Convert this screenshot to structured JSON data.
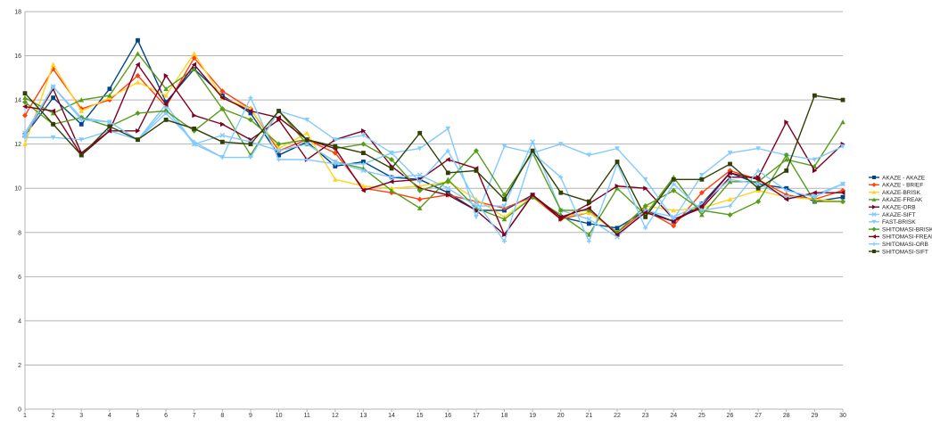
{
  "chart_data": {
    "type": "line",
    "title": "",
    "xlabel": "",
    "ylabel": "",
    "x": [
      1,
      2,
      3,
      4,
      5,
      6,
      7,
      8,
      9,
      10,
      11,
      12,
      13,
      14,
      15,
      16,
      17,
      18,
      19,
      20,
      21,
      22,
      23,
      24,
      25,
      26,
      27,
      28,
      29,
      30
    ],
    "ylim": [
      0,
      18
    ],
    "yticks": [
      0,
      2,
      4,
      6,
      8,
      10,
      12,
      14,
      16,
      18
    ],
    "grid": "horizontal",
    "legend_position": "right",
    "series": [
      {
        "name": "AKAZE - AKAZE",
        "color": "#004586",
        "marker": "square",
        "values": [
          12.4,
          14.1,
          12.9,
          14.5,
          16.7,
          13.9,
          15.4,
          14.2,
          13.4,
          11.5,
          12.1,
          11.0,
          11.2,
          10.5,
          10.4,
          9.8,
          9.0,
          9.0,
          9.7,
          8.7,
          8.4,
          8.2,
          9.0,
          8.5,
          9.3,
          10.7,
          10.2,
          10.0,
          9.4,
          9.6
        ]
      },
      {
        "name": "AKAZE - BRIEF",
        "color": "#ff420e",
        "marker": "diamond",
        "values": [
          13.3,
          15.4,
          13.6,
          14.0,
          15.1,
          13.7,
          15.9,
          14.4,
          13.6,
          11.7,
          12.2,
          11.6,
          10.0,
          9.8,
          9.5,
          9.7,
          9.4,
          9.1,
          9.6,
          8.6,
          8.9,
          8.0,
          9.0,
          8.3,
          9.8,
          10.8,
          10.4,
          9.7,
          9.5,
          9.9
        ]
      },
      {
        "name": "AKAZE-BRISK",
        "color": "#ffd320",
        "marker": "triangle",
        "values": [
          12.0,
          15.6,
          13.5,
          14.1,
          14.8,
          14.2,
          16.1,
          14.1,
          13.6,
          11.8,
          12.5,
          10.4,
          10.1,
          10.0,
          10.1,
          10.3,
          9.5,
          8.7,
          9.6,
          8.7,
          8.9,
          8.0,
          9.2,
          9.0,
          9.1,
          9.5,
          9.9,
          9.6,
          9.5,
          9.4
        ]
      },
      {
        "name": "AKAZE-FREAK",
        "color": "#579d1c",
        "marker": "triangle",
        "values": [
          14.1,
          13.4,
          14.0,
          14.2,
          16.1,
          14.5,
          15.4,
          13.6,
          11.5,
          13.5,
          12.0,
          11.2,
          10.9,
          9.9,
          9.1,
          10.4,
          9.1,
          8.6,
          9.6,
          8.8,
          7.9,
          10.0,
          8.8,
          10.5,
          8.8,
          10.3,
          10.3,
          11.3,
          11.0,
          13.0
        ]
      },
      {
        "name": "AKAZE-ORB",
        "color": "#7e0021",
        "marker": "triangle-right",
        "values": [
          12.4,
          14.5,
          11.6,
          12.6,
          12.6,
          15.1,
          13.3,
          12.9,
          12.2,
          13.1,
          11.3,
          12.2,
          12.6,
          11.0,
          10.0,
          9.7,
          9.0,
          7.9,
          9.7,
          8.6,
          9.3,
          10.1,
          10.0,
          8.6,
          9.1,
          10.5,
          10.5,
          13.0,
          10.8,
          12.0
        ]
      },
      {
        "name": "AKAZE-SIFT",
        "color": "#83caff",
        "marker": "x",
        "values": [
          12.5,
          14.6,
          13.2,
          13.0,
          12.2,
          13.8,
          12.0,
          12.4,
          12.1,
          11.7,
          12.0,
          11.2,
          10.8,
          10.5,
          10.6,
          10.0,
          9.2,
          9.2,
          12.1,
          9.0,
          8.6,
          7.8,
          9.0,
          8.7,
          9.3,
          10.4,
          10.2,
          9.6,
          9.7,
          10.2
        ]
      },
      {
        "name": "FAST-BRISK",
        "color": "#83caff",
        "marker": "triangle-down",
        "values": [
          12.3,
          12.3,
          12.2,
          12.6,
          12.2,
          13.6,
          12.0,
          11.4,
          11.4,
          13.5,
          13.1,
          12.2,
          12.4,
          11.6,
          11.8,
          12.7,
          8.7,
          11.9,
          11.6,
          12.0,
          11.5,
          11.8,
          10.4,
          8.6,
          10.6,
          11.6,
          11.8,
          11.5,
          11.3,
          11.9
        ]
      },
      {
        "name": "SHITOMASI-BRISK",
        "color": "#579d1c",
        "marker": "diamond",
        "values": [
          13.9,
          12.9,
          13.2,
          12.8,
          13.4,
          13.5,
          12.6,
          13.6,
          13.1,
          12.0,
          12.2,
          11.8,
          12.0,
          11.3,
          9.9,
          10.3,
          11.7,
          9.7,
          11.6,
          9.0,
          9.0,
          8.0,
          9.2,
          9.9,
          9.0,
          8.8,
          9.4,
          11.5,
          9.4,
          9.4
        ]
      },
      {
        "name": "SHITOMASI-FREAK",
        "color": "#7e0021",
        "marker": "triangle-left",
        "values": [
          13.7,
          13.5,
          11.5,
          12.6,
          15.6,
          13.8,
          15.6,
          14.1,
          13.5,
          13.2,
          12.2,
          11.8,
          9.9,
          10.3,
          10.4,
          11.3,
          10.9,
          7.9,
          9.7,
          8.7,
          9.1,
          7.9,
          8.9,
          8.5,
          9.2,
          10.7,
          10.4,
          9.5,
          9.8,
          9.8
        ]
      },
      {
        "name": "SHITOMASI-ORB",
        "color": "#83caff",
        "marker": "plus",
        "values": [
          12.4,
          14.6,
          13.1,
          13.0,
          12.2,
          13.4,
          12.1,
          11.4,
          14.1,
          11.3,
          11.3,
          11.1,
          11.1,
          11.6,
          10.3,
          11.7,
          9.4,
          7.6,
          11.6,
          10.5,
          7.6,
          11.1,
          8.2,
          10.2,
          9.0,
          9.2,
          10.8,
          9.9,
          9.6,
          10.2
        ]
      },
      {
        "name": "SHITOMASI-SIFT",
        "color": "#314004",
        "marker": "square",
        "values": [
          14.3,
          12.9,
          11.5,
          12.8,
          12.2,
          13.1,
          12.7,
          12.1,
          12.0,
          13.5,
          12.2,
          11.9,
          11.6,
          10.9,
          12.5,
          10.7,
          10.8,
          9.5,
          11.7,
          9.8,
          9.4,
          11.2,
          8.7,
          10.4,
          10.4,
          11.1,
          10.0,
          10.8,
          14.2,
          14.0
        ]
      }
    ]
  }
}
